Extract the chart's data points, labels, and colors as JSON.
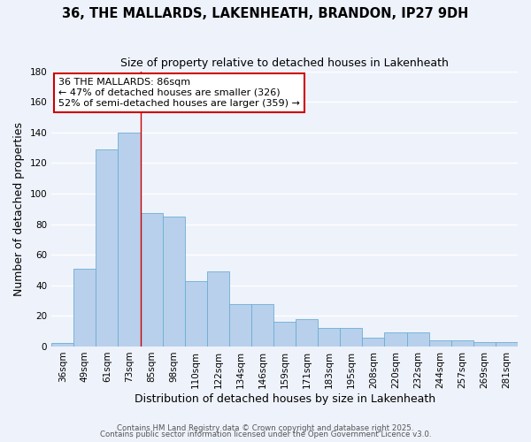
{
  "title": "36, THE MALLARDS, LAKENHEATH, BRANDON, IP27 9DH",
  "subtitle": "Size of property relative to detached houses in Lakenheath",
  "xlabel": "Distribution of detached houses by size in Lakenheath",
  "ylabel": "Number of detached properties",
  "categories": [
    "36sqm",
    "49sqm",
    "61sqm",
    "73sqm",
    "85sqm",
    "98sqm",
    "110sqm",
    "122sqm",
    "134sqm",
    "146sqm",
    "159sqm",
    "171sqm",
    "183sqm",
    "195sqm",
    "208sqm",
    "220sqm",
    "232sqm",
    "244sqm",
    "257sqm",
    "269sqm",
    "281sqm"
  ],
  "values": [
    2,
    51,
    129,
    140,
    87,
    85,
    43,
    49,
    28,
    28,
    16,
    18,
    12,
    12,
    6,
    9,
    9,
    4,
    4,
    3,
    3
  ],
  "bar_color": "#b8d0eb",
  "bar_edge_color": "#6aaed6",
  "vline_x_index": 4,
  "vline_color": "#cc0000",
  "ylim": [
    0,
    180
  ],
  "yticks": [
    0,
    20,
    40,
    60,
    80,
    100,
    120,
    140,
    160,
    180
  ],
  "annotation_line1": "36 THE MALLARDS: 86sqm",
  "annotation_line2": "← 47% of detached houses are smaller (326)",
  "annotation_line3": "52% of semi-detached houses are larger (359) →",
  "title_fontsize": 10.5,
  "subtitle_fontsize": 9,
  "axis_label_fontsize": 9,
  "tick_fontsize": 7.5,
  "annotation_fontsize": 8,
  "footer_line1": "Contains HM Land Registry data © Crown copyright and database right 2025.",
  "footer_line2": "Contains public sector information licensed under the Open Government Licence v3.0.",
  "background_color": "#eef2fb",
  "grid_color": "#ffffff"
}
